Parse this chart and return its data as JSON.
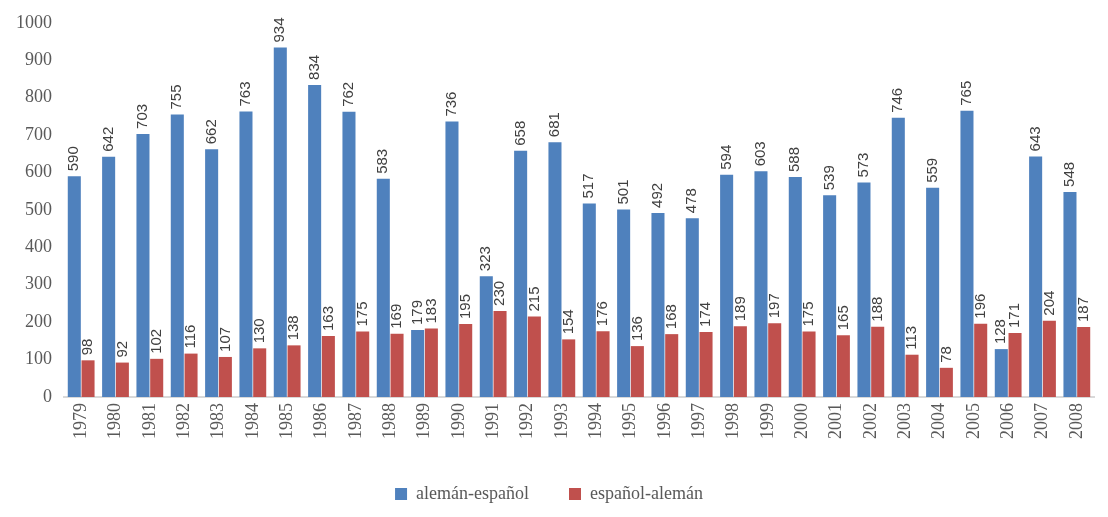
{
  "chart_data": {
    "type": "bar",
    "categories": [
      "1979",
      "1980",
      "1981",
      "1982",
      "1983",
      "1984",
      "1985",
      "1986",
      "1987",
      "1988",
      "1989",
      "1990",
      "1991",
      "1992",
      "1993",
      "1994",
      "1995",
      "1996",
      "1997",
      "1998",
      "1999",
      "2000",
      "2001",
      "2002",
      "2003",
      "2004",
      "2005",
      "2006",
      "2007",
      "2008"
    ],
    "series": [
      {
        "name": "alemán-español",
        "color": "#4f81bd",
        "values": [
          590,
          642,
          703,
          755,
          662,
          763,
          934,
          834,
          762,
          583,
          179,
          736,
          323,
          658,
          681,
          517,
          501,
          492,
          478,
          594,
          603,
          588,
          539,
          573,
          746,
          559,
          765,
          128,
          643,
          548
        ]
      },
      {
        "name": "español-alemán",
        "color": "#c0504d",
        "values": [
          98,
          92,
          102,
          116,
          107,
          130,
          138,
          163,
          175,
          169,
          183,
          195,
          230,
          215,
          154,
          176,
          136,
          168,
          174,
          189,
          197,
          175,
          165,
          188,
          113,
          78,
          196,
          171,
          204,
          187
        ]
      }
    ],
    "ylim": [
      0,
      1000
    ],
    "yticks": [
      0,
      100,
      200,
      300,
      400,
      500,
      600,
      700,
      800,
      900,
      1000
    ],
    "grid": false,
    "legend": "bottom",
    "data_labels": true
  }
}
